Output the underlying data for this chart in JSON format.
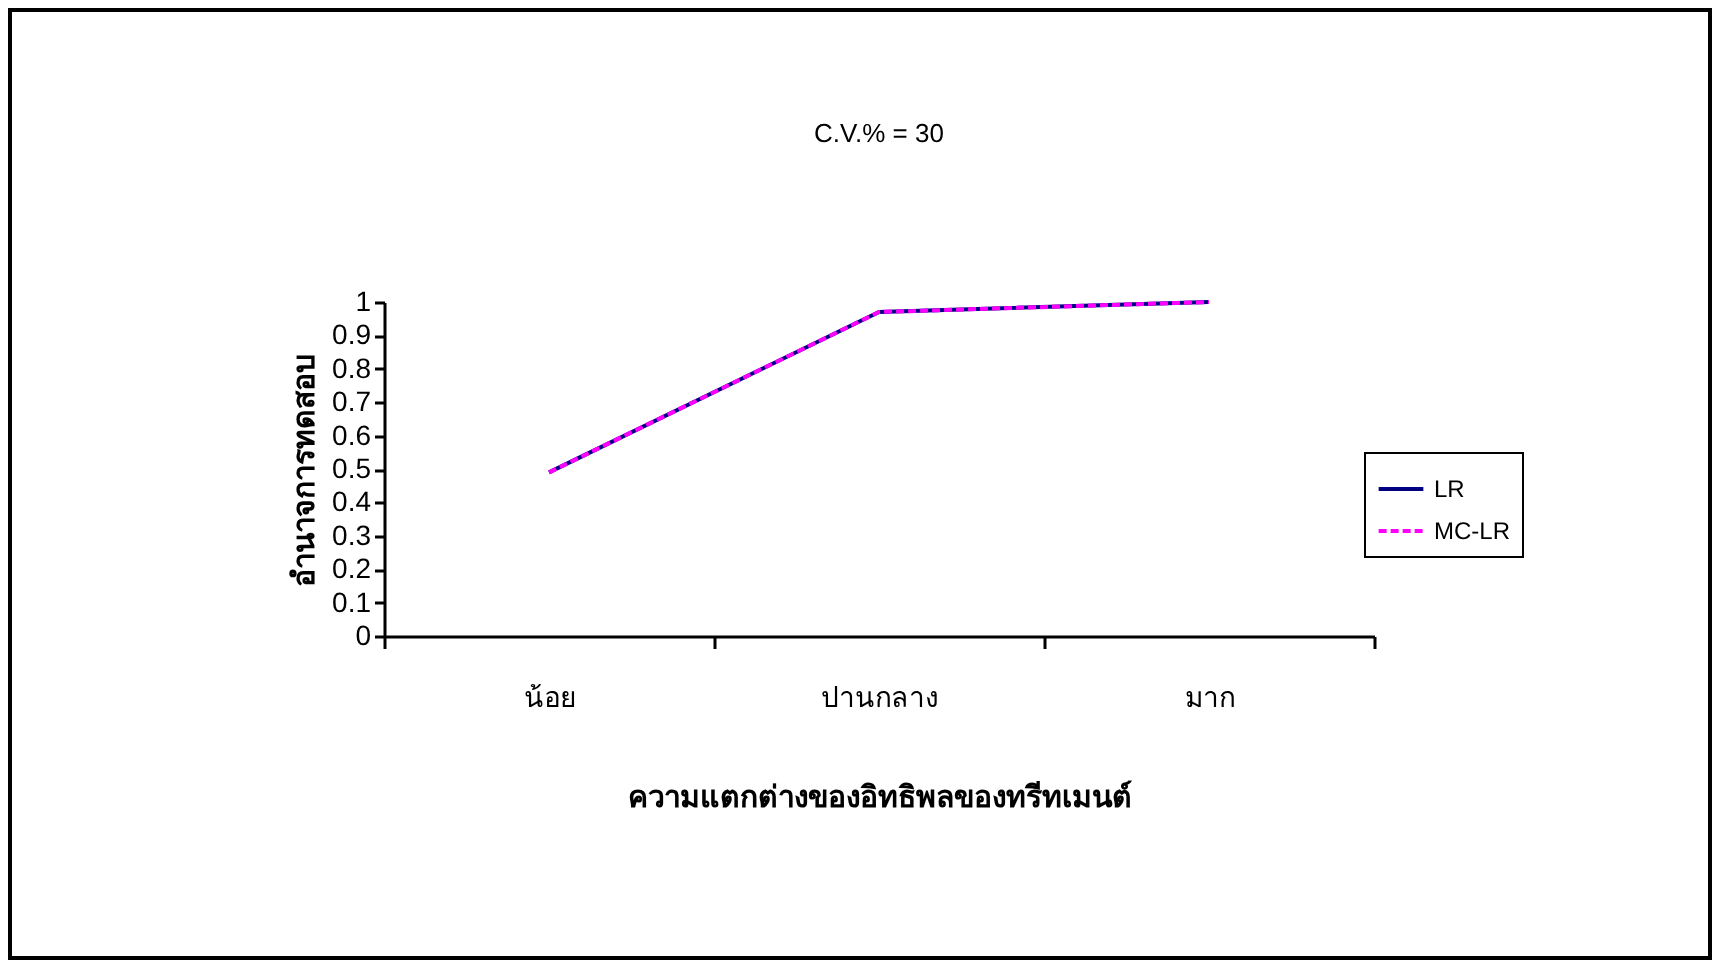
{
  "chart_data": {
    "type": "line",
    "title": "C.V.% = 30",
    "xlabel": "ความแตกต่างของอิทธิพลของทรีทเมนต์",
    "ylabel": "อำนาจการทดสอบ",
    "categories": [
      "น้อย",
      "ปานกลาง",
      "มาก"
    ],
    "series": [
      {
        "name": "LR",
        "color": "#000080",
        "line_style": "solid",
        "values": [
          0.49,
          0.97,
          1.0
        ]
      },
      {
        "name": "MC-LR",
        "color": "#ff00ff",
        "line_style": "dashed",
        "values": [
          0.49,
          0.97,
          1.0
        ]
      }
    ],
    "ylim": [
      0,
      1
    ],
    "yticks": [
      0,
      0.1,
      0.2,
      0.3,
      0.4,
      0.5,
      0.6,
      0.7,
      0.8,
      0.9,
      1
    ],
    "grid": false,
    "legend": "right",
    "marker": "none"
  }
}
